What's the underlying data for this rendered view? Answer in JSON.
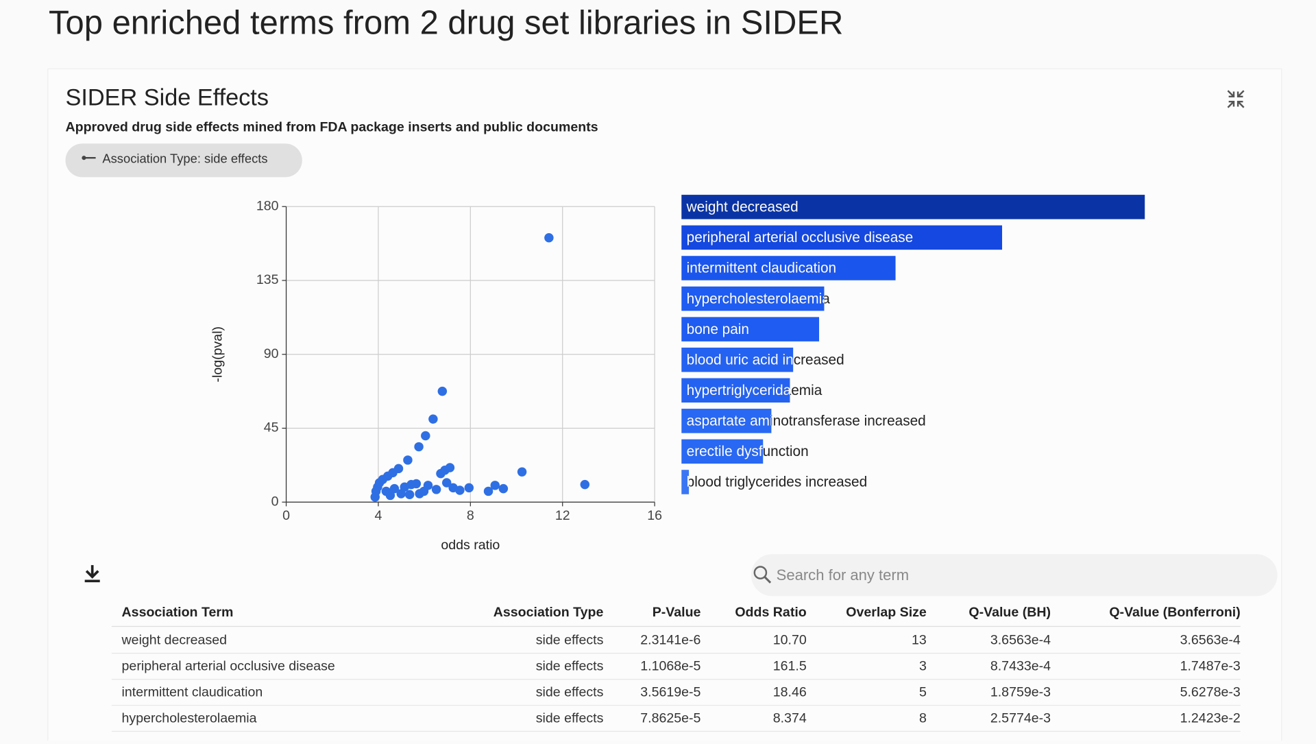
{
  "header": {
    "title": "Top enriched terms from 2 drug set libraries in SIDER"
  },
  "card": {
    "title": "SIDER Side Effects",
    "subtitle": "Approved drug side effects mined from FDA package inserts and public documents",
    "chip": "Association Type: side effects",
    "search_placeholder": "Search for any term"
  },
  "chart_data": [
    {
      "type": "scatter",
      "x_label": "odds ratio",
      "y_label": "-log(pval)",
      "color": "#2f6fe4",
      "xlim": [
        0,
        16
      ],
      "ylim": [
        0,
        180
      ],
      "xticks": [
        0,
        4,
        8,
        12,
        16
      ],
      "yticks": [
        0,
        45,
        90,
        135,
        180
      ],
      "grid": true,
      "x": [
        11.41,
        6.78,
        6.38,
        6.05,
        5.76,
        5.28,
        10.24,
        12.97,
        4.88,
        4.63,
        4.41,
        4.19,
        4.05,
        3.97,
        3.9,
        3.86,
        4.34,
        4.7,
        5.14,
        5.43,
        5.65,
        5.98,
        6.16,
        6.52,
        6.71,
        6.89,
        7.11,
        6.97,
        7.25,
        7.54,
        7.94,
        8.78,
        9.07,
        9.43,
        4.99,
        5.36,
        5.79,
        4.52
      ],
      "values": [
        161.0,
        67.5,
        50.6,
        40.4,
        33.7,
        25.6,
        18.4,
        10.7,
        20.4,
        17.9,
        15.8,
        13.8,
        11.8,
        9.2,
        6.6,
        3.1,
        6.6,
        8.2,
        9.2,
        10.7,
        11.2,
        6.6,
        10.2,
        7.7,
        17.4,
        19.4,
        21.0,
        11.8,
        8.7,
        7.2,
        8.7,
        6.6,
        10.2,
        8.2,
        5.1,
        4.6,
        5.1,
        4.1
      ]
    },
    {
      "type": "bar",
      "orientation": "horizontal",
      "categories": [
        "weight decreased",
        "peripheral arterial occlusive disease",
        "intermittent claudication",
        "hypercholesterolaemia",
        "bone pain",
        "blood uric acid increased",
        "hypertriglyceridaemia",
        "aspartate aminotransferase increased",
        "erectile dysfunction",
        "blood triglycerides increased"
      ],
      "values": [
        100,
        69.2,
        46.2,
        30.8,
        29.7,
        24.1,
        23.4,
        19.4,
        17.6,
        1.6
      ],
      "colors": [
        "#0a34a6",
        "#1448e0",
        "#1a55ee",
        "#1e5cf2",
        "#1e5cf2",
        "#2462f2",
        "#2462f2",
        "#2868f3",
        "#2868f3",
        "#3a76f4"
      ]
    }
  ],
  "table": {
    "columns": [
      "Association Term",
      "Association Type",
      "P-Value",
      "Odds Ratio",
      "Overlap Size",
      "Q-Value (BH)",
      "Q-Value (Bonferroni)"
    ],
    "rows": [
      [
        "weight decreased",
        "side effects",
        "2.3141e-6",
        "10.70",
        "13",
        "3.6563e-4",
        "3.6563e-4"
      ],
      [
        "peripheral arterial occlusive disease",
        "side effects",
        "1.1068e-5",
        "161.5",
        "3",
        "8.7433e-4",
        "1.7487e-3"
      ],
      [
        "intermittent claudication",
        "side effects",
        "3.5619e-5",
        "18.46",
        "5",
        "1.8759e-3",
        "5.6278e-3"
      ],
      [
        "hypercholesterolaemia",
        "side effects",
        "7.8625e-5",
        "8.374",
        "8",
        "2.5774e-3",
        "1.2423e-2"
      ]
    ]
  }
}
